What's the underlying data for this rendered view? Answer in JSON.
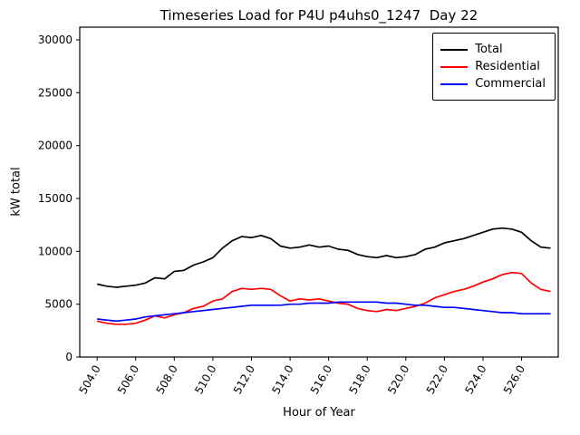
{
  "chart_data": {
    "type": "line",
    "title": "Timeseries Load for P4U p4uhs0_1247  Day 22",
    "xlabel": "Hour of Year",
    "ylabel": "kW total",
    "xlim": [
      503.1,
      527.9
    ],
    "ylim": [
      0,
      31200
    ],
    "grid": false,
    "legend_position": "upper right",
    "xticks": [
      504,
      506,
      508,
      510,
      512,
      514,
      516,
      518,
      520,
      522,
      524,
      526
    ],
    "xtick_labels": [
      "504.0",
      "506.0",
      "508.0",
      "510.0",
      "512.0",
      "514.0",
      "516.0",
      "518.0",
      "520.0",
      "522.0",
      "524.0",
      "526.0"
    ],
    "yticks": [
      0,
      5000,
      10000,
      15000,
      20000,
      25000,
      30000
    ],
    "ytick_labels": [
      "0",
      "5000",
      "10000",
      "15000",
      "20000",
      "25000",
      "30000"
    ],
    "x": [
      504,
      504.5,
      505,
      505.5,
      506,
      506.5,
      507,
      507.5,
      508,
      508.5,
      509,
      509.5,
      510,
      510.5,
      511,
      511.5,
      512,
      512.5,
      513,
      513.5,
      514,
      514.5,
      515,
      515.5,
      516,
      516.5,
      517,
      517.5,
      518,
      518.5,
      519,
      519.5,
      520,
      520.5,
      521,
      521.5,
      522,
      522.5,
      523,
      523.5,
      524,
      524.5,
      525,
      525.5,
      526,
      526.5,
      527,
      527.5
    ],
    "series": [
      {
        "name": "Total",
        "color": "#000000",
        "values": [
          6900,
          6700,
          6600,
          6700,
          6800,
          7000,
          7500,
          7400,
          8100,
          8200,
          8700,
          9000,
          9400,
          10300,
          11000,
          11400,
          11300,
          11500,
          11200,
          10500,
          10300,
          10400,
          10600,
          10400,
          10500,
          10200,
          10100,
          9700,
          9500,
          9400,
          9600,
          9400,
          9500,
          9700,
          10200,
          10400,
          10800,
          11000,
          11200,
          11500,
          11800,
          12100,
          12200,
          12100,
          11800,
          11000,
          10400,
          10300
        ]
      },
      {
        "name": "Residential",
        "color": "#ff0000",
        "values": [
          3400,
          3200,
          3100,
          3100,
          3200,
          3500,
          3900,
          3700,
          4000,
          4200,
          4600,
          4800,
          5300,
          5500,
          6200,
          6500,
          6400,
          6500,
          6400,
          5800,
          5300,
          5500,
          5400,
          5500,
          5300,
          5100,
          5000,
          4600,
          4400,
          4300,
          4500,
          4400,
          4600,
          4800,
          5100,
          5600,
          5900,
          6200,
          6400,
          6700,
          7100,
          7400,
          7800,
          8000,
          7900,
          7000,
          6400,
          6200
        ]
      },
      {
        "name": "Commercial",
        "color": "#0000ff",
        "values": [
          3600,
          3500,
          3400,
          3500,
          3600,
          3800,
          3900,
          4000,
          4100,
          4200,
          4300,
          4400,
          4500,
          4600,
          4700,
          4800,
          4900,
          4900,
          4900,
          4900,
          5000,
          5000,
          5100,
          5100,
          5100,
          5200,
          5200,
          5200,
          5200,
          5200,
          5100,
          5100,
          5000,
          4900,
          4900,
          4800,
          4700,
          4700,
          4600,
          4500,
          4400,
          4300,
          4200,
          4200,
          4100,
          4100,
          4100,
          4100
        ]
      }
    ]
  }
}
